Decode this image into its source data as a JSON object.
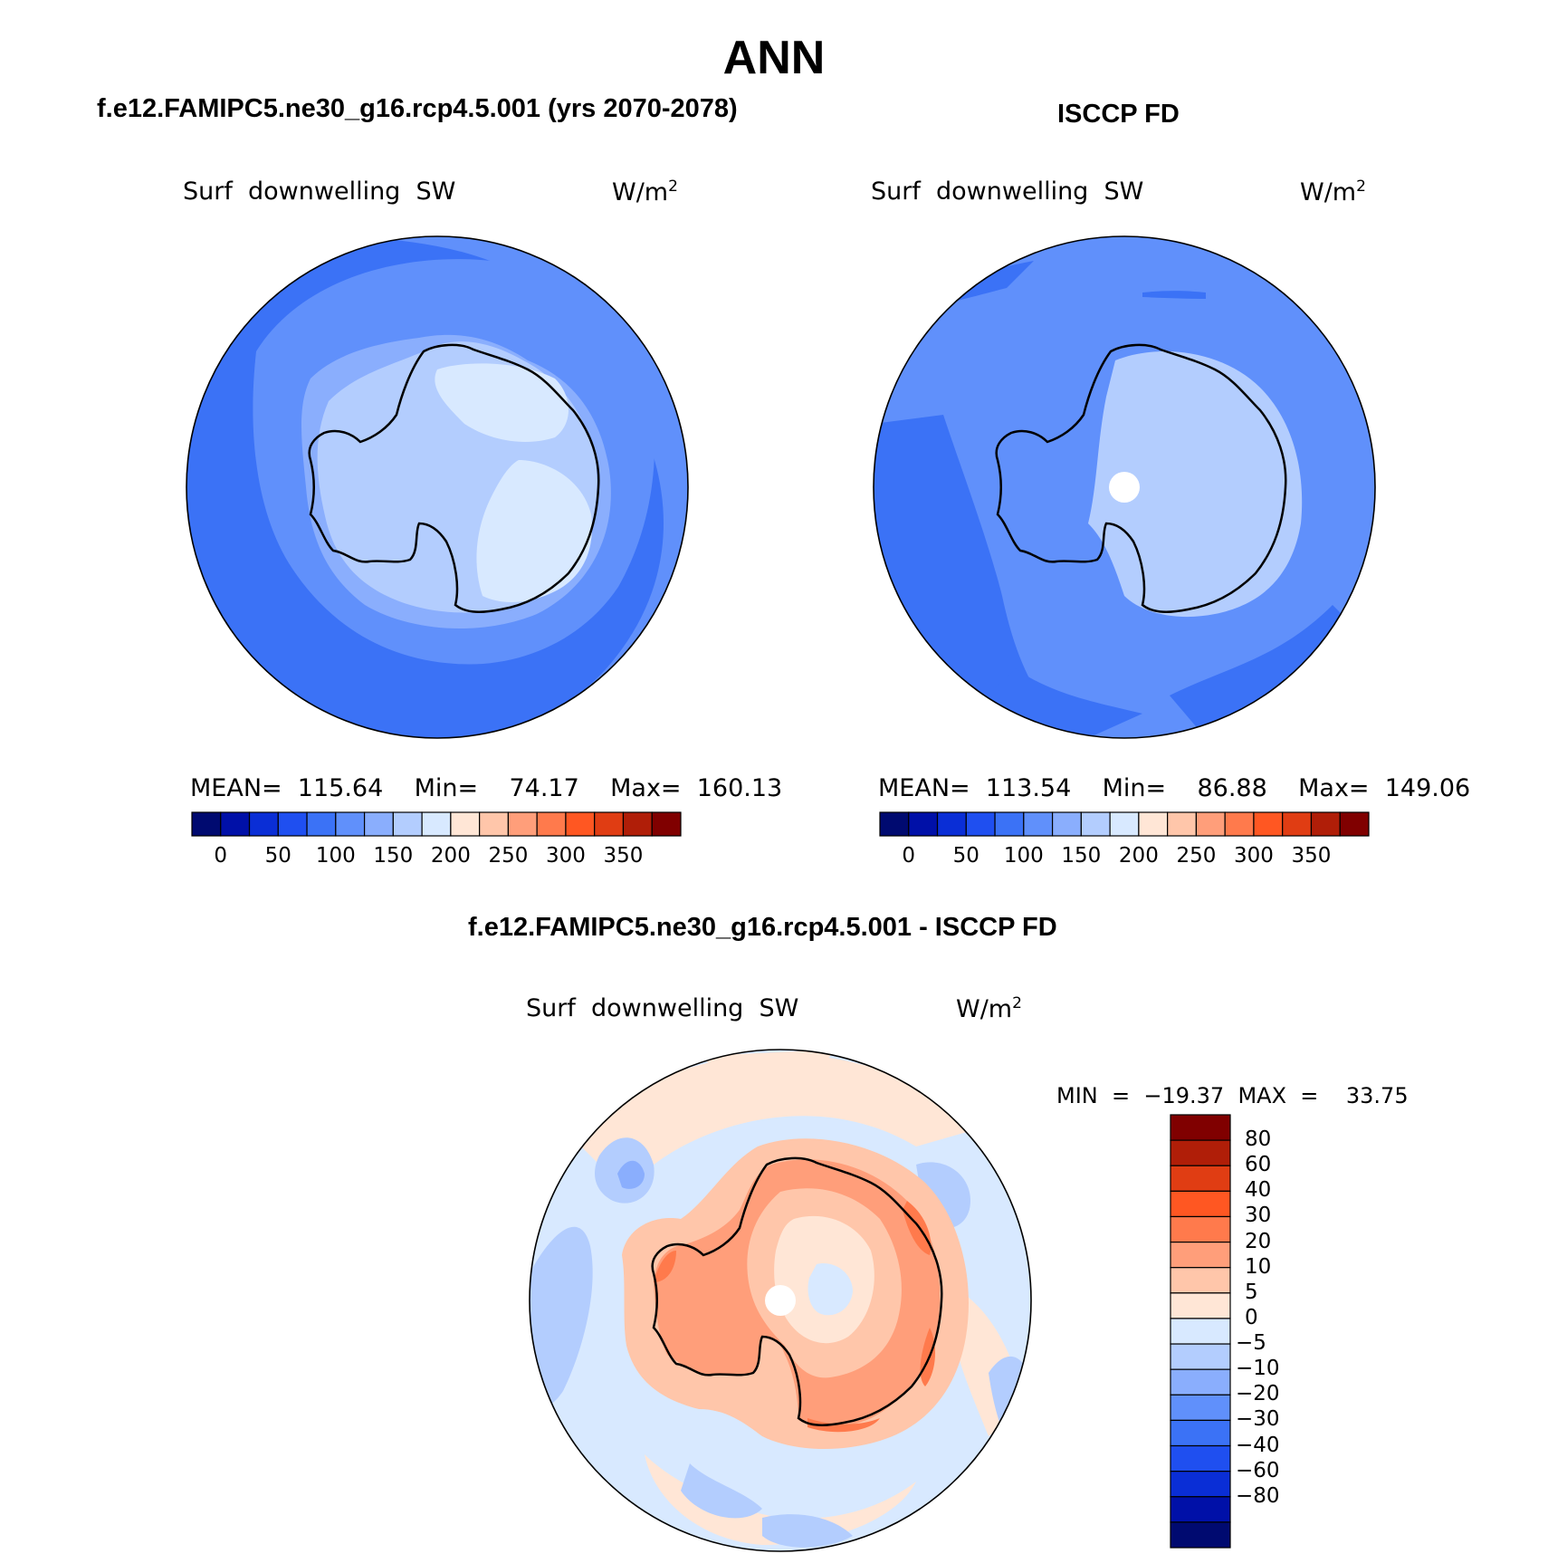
{
  "main_title": "ANN",
  "panel_left": {
    "title": "f.e12.FAMIPC5.ne30_g16.rcp4.5.001 (yrs 2070-2078)",
    "variable": "Surf  downwelling  SW",
    "units": "W/m",
    "units_sup": "2",
    "stats": "MEAN=  115.64    Min=    74.17    Max=  160.13"
  },
  "panel_right": {
    "title": "ISCCP FD",
    "variable": "Surf  downwelling  SW",
    "units": "W/m",
    "units_sup": "2",
    "stats": "MEAN=  113.54    Min=    86.88    Max=  149.06"
  },
  "panel_diff": {
    "title": "f.e12.FAMIPC5.ne30_g16.rcp4.5.001 - ISCCP FD",
    "variable": "Surf  downwelling  SW",
    "units": "W/m",
    "units_sup": "2",
    "stats": "MIN  =  −19.37  MAX  =    33.75"
  },
  "colorbar_abs": {
    "colors": [
      "#000a70",
      "#0010a8",
      "#0a2ed6",
      "#1f4ff0",
      "#3b72f6",
      "#6090fb",
      "#8aaefd",
      "#b3cdfe",
      "#d8e9ff",
      "#ffe6d6",
      "#ffc6aa",
      "#ff9e7a",
      "#ff7a4c",
      "#ff5722",
      "#e03d13",
      "#b01e08",
      "#800000"
    ],
    "ticks": [
      "0",
      "50",
      "100",
      "150",
      "200",
      "250",
      "300",
      "350"
    ]
  },
  "colorbar_diff": {
    "colors": [
      "#800000",
      "#b01e08",
      "#e03d13",
      "#ff5722",
      "#ff7a4c",
      "#ff9e7a",
      "#ffc6aa",
      "#ffe6d6",
      "#d8e9ff",
      "#b3cdfe",
      "#8aaefd",
      "#6090fb",
      "#3b72f6",
      "#1f4ff0",
      "#0a2ed6",
      "#0010a8",
      "#000a70"
    ],
    "ticks": [
      "80",
      "60",
      "40",
      "30",
      "20",
      "10",
      "5",
      "0",
      "−5",
      "−10",
      "−20",
      "−30",
      "−40",
      "−60",
      "−80"
    ]
  }
}
